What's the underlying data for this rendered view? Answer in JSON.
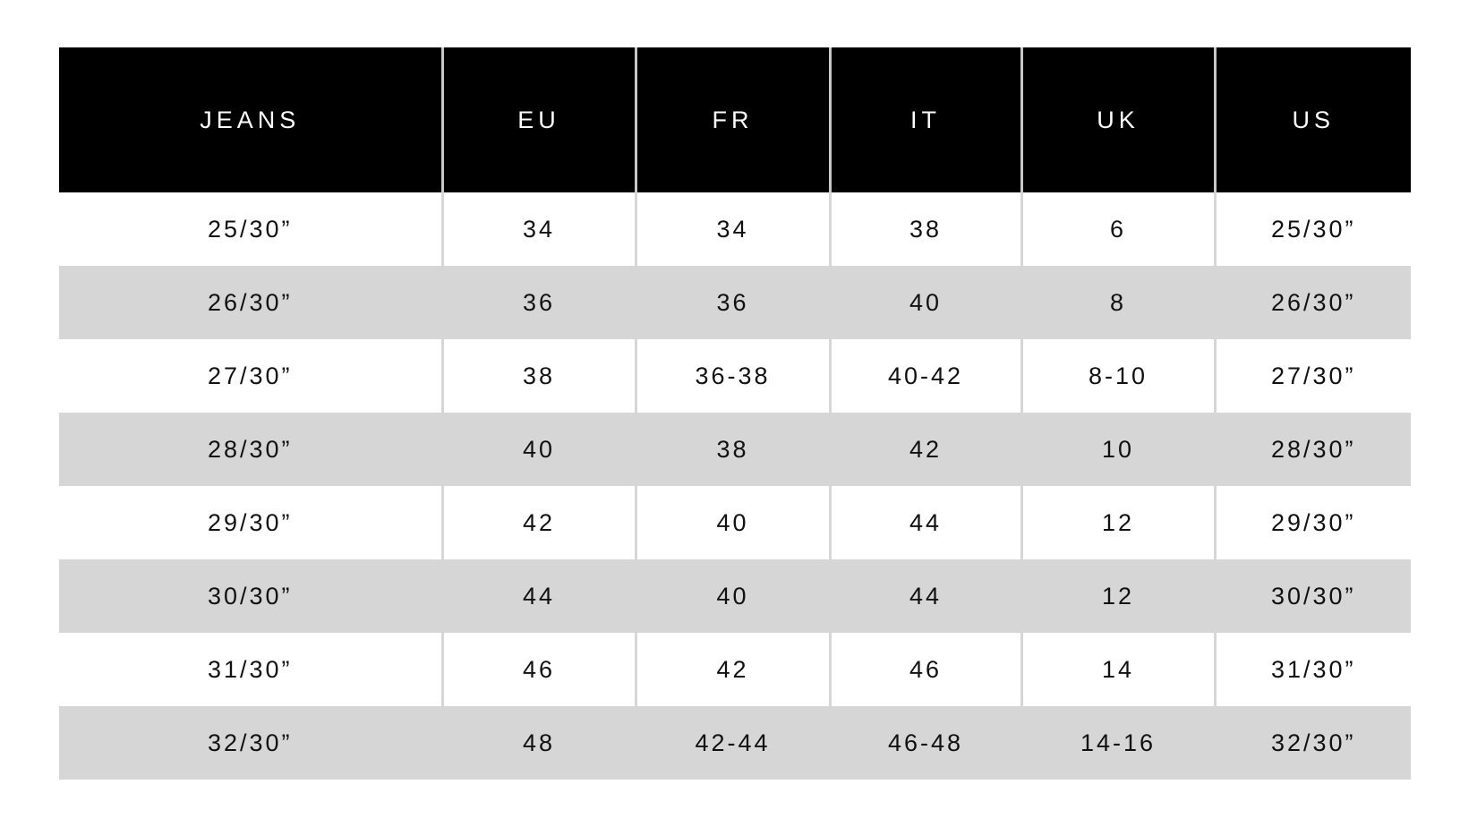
{
  "table": {
    "headers": [
      "JEANS",
      "EU",
      "FR",
      "IT",
      "UK",
      "US"
    ],
    "rows": [
      [
        "25/30”",
        "34",
        "34",
        "38",
        "6",
        "25/30”"
      ],
      [
        "26/30”",
        "36",
        "36",
        "40",
        "8",
        "26/30”"
      ],
      [
        "27/30”",
        "38",
        "36-38",
        "40-42",
        "8-10",
        "27/30”"
      ],
      [
        "28/30”",
        "40",
        "38",
        "42",
        "10",
        "28/30”"
      ],
      [
        "29/30”",
        "42",
        "40",
        "44",
        "12",
        "29/30”"
      ],
      [
        "30/30”",
        "44",
        "40",
        "44",
        "12",
        "30/30”"
      ],
      [
        "31/30”",
        "46",
        "42",
        "46",
        "14",
        "31/30”"
      ],
      [
        "32/30”",
        "48",
        "42-44",
        "46-48",
        "14-16",
        "32/30”"
      ]
    ]
  },
  "colors": {
    "header_bg": "#000000",
    "header_text": "#ffffff",
    "stripe_bg": "#d5d6d5",
    "divider": "#d6d6d6"
  }
}
